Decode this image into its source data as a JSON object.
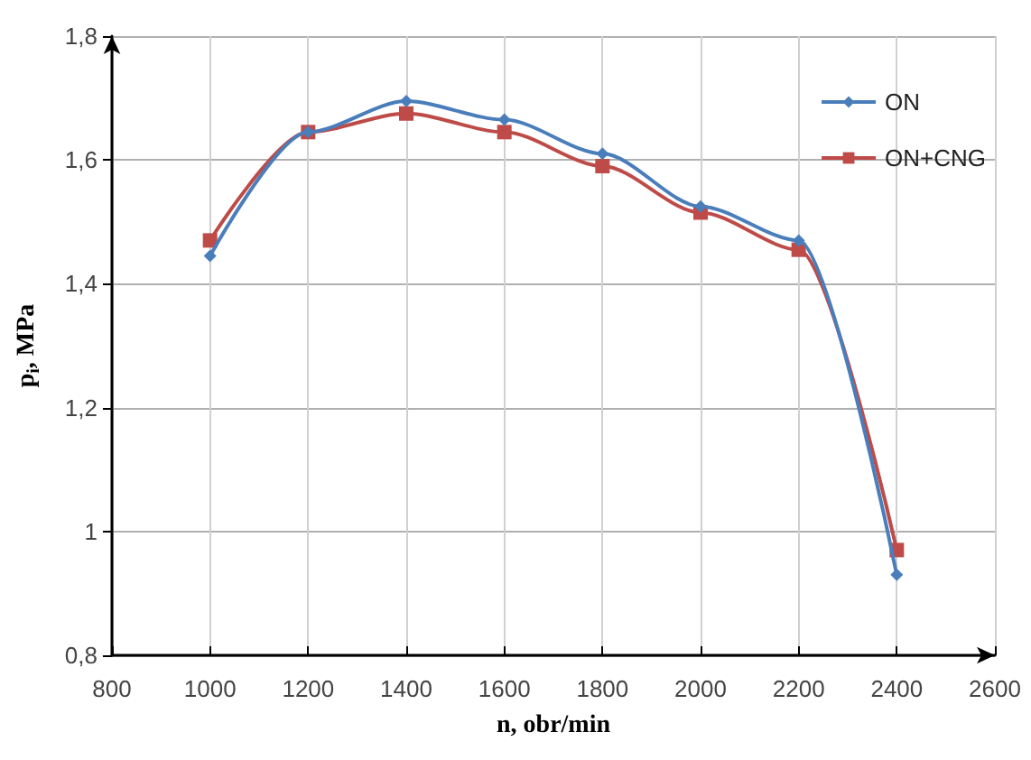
{
  "chart_data": {
    "type": "line",
    "xlabel": "n, obr/min",
    "ylabel": "p$_{i}$, MPa",
    "x": [
      1000,
      1200,
      1400,
      1600,
      1800,
      2000,
      2200,
      2400
    ],
    "series": [
      {
        "name": "ON",
        "color": "#4a7ebb",
        "marker": "diamond",
        "values": [
          1.445,
          1.645,
          1.695,
          1.665,
          1.61,
          1.525,
          1.47,
          0.93
        ]
      },
      {
        "name": "ON+CNG",
        "color": "#be4b48",
        "marker": "square",
        "values": [
          1.47,
          1.645,
          1.675,
          1.645,
          1.59,
          1.515,
          1.455,
          0.97
        ]
      }
    ],
    "xlim": [
      800,
      2600
    ],
    "xticks": [
      800,
      1000,
      1200,
      1400,
      1600,
      1800,
      2000,
      2200,
      2400,
      2600
    ],
    "ylim": [
      0.8,
      1.8
    ],
    "yticks": [
      {
        "value": 0.8,
        "label": "0,8"
      },
      1,
      {
        "value": 1.2,
        "label": "1,2"
      },
      {
        "value": 1.4,
        "label": "1,4"
      },
      {
        "value": 1.6,
        "label": "1,6"
      },
      {
        "value": 1.8,
        "label": "1,8"
      }
    ],
    "grid": true,
    "legend": "top right"
  }
}
